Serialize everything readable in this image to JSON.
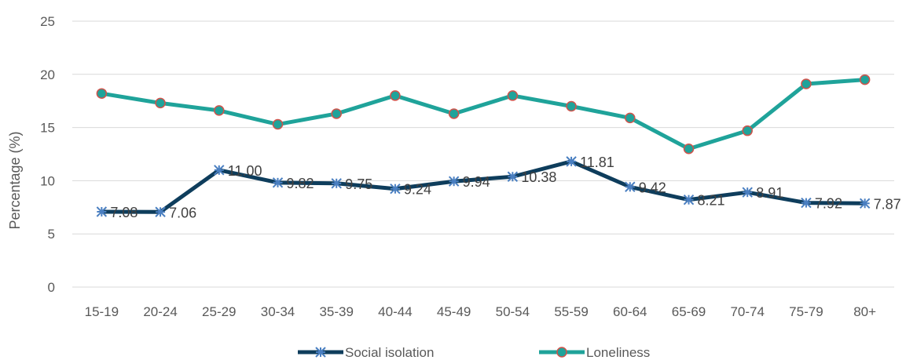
{
  "chart_data": {
    "type": "line",
    "categories": [
      "15-19",
      "20-24",
      "25-29",
      "30-34",
      "35-39",
      "40-44",
      "45-49",
      "50-54",
      "55-59",
      "60-64",
      "65-69",
      "70-74",
      "75-79",
      "80+"
    ],
    "ylabel": "Percentage (%)",
    "xlabel": "",
    "ylim": [
      0,
      25
    ],
    "yticks": [
      "0",
      "5",
      "10",
      "15",
      "20",
      "25"
    ],
    "grid": true,
    "legend_position": "bottom",
    "series": [
      {
        "name": "Social isolation",
        "color": "#0e3d5c",
        "marker": "asterisk",
        "marker_color": "#4a7fc1",
        "values": [
          7.08,
          7.06,
          11.0,
          9.82,
          9.75,
          9.24,
          9.94,
          10.38,
          11.81,
          9.42,
          8.21,
          8.91,
          7.92,
          7.87
        ],
        "labels": [
          "7.08",
          "7.06",
          "11.00",
          "9.82",
          "9.75",
          "9.24",
          "9.94",
          "10.38",
          "11.81",
          "9.42",
          "8.21",
          "8.91",
          "7.92",
          "7.87"
        ]
      },
      {
        "name": "Loneliness",
        "color": "#1fa39a",
        "marker": "circle",
        "marker_color": "#d0534b",
        "values": [
          18.2,
          17.3,
          16.6,
          15.3,
          16.3,
          18.0,
          16.3,
          18.0,
          17.0,
          15.9,
          13.0,
          14.7,
          19.1,
          19.5
        ]
      }
    ]
  }
}
